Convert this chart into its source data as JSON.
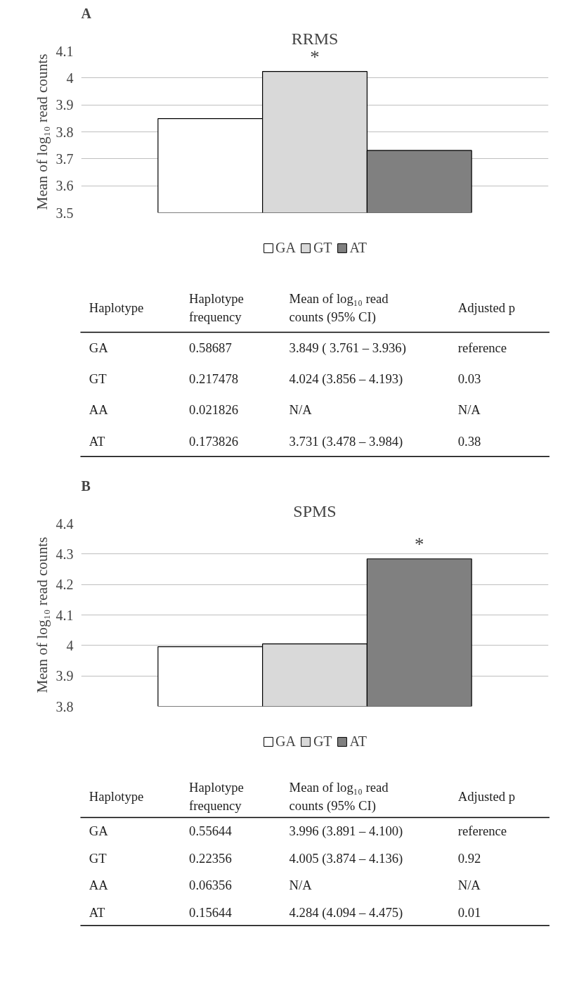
{
  "chart_data": [
    {
      "type": "bar",
      "title": "RRMS",
      "ylabel": "Mean of log₁₀ read counts",
      "categories": [
        null
      ],
      "series": [
        {
          "name": "GA",
          "color": "#ffffff",
          "values": [
            3.849
          ]
        },
        {
          "name": "GT",
          "color": "#d9d9d9",
          "values": [
            4.024
          ]
        },
        {
          "name": "AT",
          "color": "#808080",
          "values": [
            3.731
          ]
        }
      ],
      "ylim": [
        3.5,
        4.1
      ],
      "yticks": [
        3.5,
        3.6,
        3.7,
        3.8,
        3.9,
        4,
        4.1
      ],
      "grid": "y",
      "legend": "bottom",
      "tick_labels": "y",
      "annotations": [
        "A",
        {
          "text": "*",
          "y": 4.024
        }
      ]
    },
    {
      "type": "other",
      "annotations": [
        "Haplotype",
        "Haplotype\nfrequency",
        "Mean of log₁₀ read\ncounts (95% CI)",
        "Adjusted p",
        "GA",
        "0.58687",
        "3.849 ( 3.761 – 3.936)",
        "reference",
        "GT",
        "0.217478",
        "4.024 (3.856 – 4.193)",
        "0.03",
        "AA",
        "0.021826",
        "N/A",
        "N/A",
        "AT",
        "0.173826",
        "3.731 (3.478 – 3.984)",
        "0.38"
      ]
    },
    {
      "type": "bar",
      "title": "SPMS",
      "ylabel": "Mean of log₁₀ read counts",
      "categories": [
        null
      ],
      "series": [
        {
          "name": "GA",
          "color": "#ffffff",
          "values": [
            3.996
          ]
        },
        {
          "name": "GT",
          "color": "#d9d9d9",
          "values": [
            4.005
          ]
        },
        {
          "name": "AT",
          "color": "#808080",
          "values": [
            4.284
          ]
        }
      ],
      "ylim": [
        3.8,
        4.4
      ],
      "yticks": [
        3.8,
        3.9,
        4,
        4.1,
        4.2,
        4.3,
        4.4
      ],
      "grid": "y",
      "legend": "bottom",
      "tick_labels": "y",
      "annotations": [
        "B",
        {
          "text": "*",
          "y": 4.284
        }
      ]
    },
    {
      "type": "other",
      "annotations": [
        "Haplotype",
        "Haplotype\nfrequency",
        "Mean of log₁₀ read\ncounts (95% CI)",
        "Adjusted p",
        "GA",
        "0.55644",
        "3.996 (3.891 – 4.100)",
        "reference",
        "GT",
        "0.22356",
        "4.005 (3.874 – 4.136)",
        "0.92",
        "AA",
        "0.06356",
        "N/A",
        "N/A",
        "AT",
        "0.15644",
        "4.284 (4.094 – 4.475)",
        "0.01"
      ]
    }
  ]
}
